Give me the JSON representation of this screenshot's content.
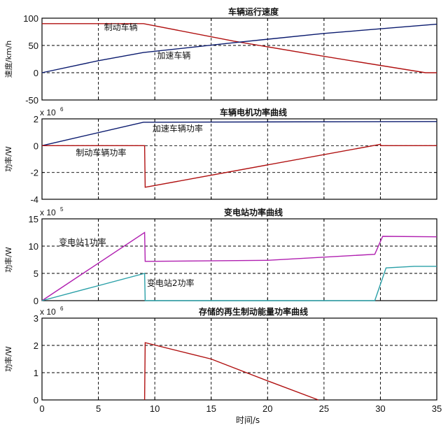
{
  "chart_data": [
    {
      "type": "line",
      "title": "车辆运行速度",
      "ylabel": "速度/km/h",
      "xlim": [
        0,
        35
      ],
      "ylim": [
        -50,
        100
      ],
      "yticks": [
        -50,
        0,
        50,
        100
      ],
      "ytick_labels": [
        "-50",
        "0",
        "50",
        "100"
      ],
      "grid": true,
      "series": [
        {
          "name": "制动车辆",
          "color": "#b01010",
          "x": [
            0,
            9,
            17,
            25,
            34,
            35
          ],
          "y": [
            90,
            90,
            58,
            30,
            0,
            0
          ]
        },
        {
          "name": "加速车辆",
          "color": "#0a1a6e",
          "x": [
            0,
            5,
            9,
            17,
            25,
            35
          ],
          "y": [
            0,
            22,
            37,
            55,
            72,
            89
          ]
        }
      ],
      "annotations": [
        {
          "text": "制动车辆",
          "x": 5.5,
          "y": 78
        },
        {
          "text": "加速车辆",
          "x": 10.2,
          "y": 26
        }
      ]
    },
    {
      "type": "line",
      "title": "车辆电机功率曲线",
      "ylabel": "功率/W",
      "exponent_base": "x 10",
      "exponent_power": "6",
      "xlim": [
        0,
        35
      ],
      "ylim": [
        -4,
        2
      ],
      "yticks": [
        -4,
        -2,
        0,
        2
      ],
      "ytick_labels": [
        "-4",
        "-2",
        "0",
        "2"
      ],
      "grid": true,
      "series": [
        {
          "name": "加速车辆功率",
          "color": "#0a1a6e",
          "x": [
            0,
            9,
            35
          ],
          "y": [
            0,
            1.75,
            1.8
          ]
        },
        {
          "name": "制动车辆功率",
          "color": "#b01010",
          "x": [
            0,
            9.1,
            9.15,
            30,
            30.05,
            35
          ],
          "y": [
            0,
            0,
            -3.1,
            0.1,
            0,
            0
          ]
        }
      ],
      "annotations": [
        {
          "text": "加速车辆功率",
          "x": 9.8,
          "y": 1.05
        },
        {
          "text": "制动车辆功率",
          "x": 3,
          "y": -0.75
        }
      ]
    },
    {
      "type": "line",
      "title": "变电站功率曲线",
      "ylabel": "功率/W",
      "exponent_base": "x 10",
      "exponent_power": "5",
      "xlim": [
        0,
        35
      ],
      "ylim": [
        0,
        15
      ],
      "yticks": [
        0,
        5,
        10,
        15
      ],
      "ytick_labels": [
        "0",
        "5",
        "10",
        "15"
      ],
      "grid": true,
      "series": [
        {
          "name": "变电站1功率",
          "color": "#b01fb0",
          "x": [
            0,
            9.1,
            9.15,
            20,
            29.5,
            30.2,
            35
          ],
          "y": [
            0,
            12.5,
            7.2,
            7.4,
            8.5,
            11.8,
            11.7
          ]
        },
        {
          "name": "变电站2功率",
          "color": "#2aa0a8",
          "x": [
            0,
            9.1,
            9.15,
            29.5,
            30.5,
            33,
            35
          ],
          "y": [
            0,
            5,
            0,
            0,
            6,
            6.3,
            6.3
          ]
        }
      ],
      "annotations": [
        {
          "text": "变电站1功率",
          "x": 1.5,
          "y": 10.2
        },
        {
          "text": "变电站2功率",
          "x": 9.3,
          "y": 2.7
        }
      ]
    },
    {
      "type": "line",
      "title": "存储的再生制动能量功率曲线",
      "ylabel": "功率/W",
      "exponent_base": "x 10",
      "exponent_power": "6",
      "xlabel": "时间/s",
      "xlim": [
        0,
        35
      ],
      "ylim": [
        0,
        3
      ],
      "yticks": [
        0,
        1,
        2,
        3
      ],
      "ytick_labels": [
        "0",
        "1",
        "2",
        "3"
      ],
      "xticks": [
        0,
        5,
        10,
        15,
        20,
        25,
        30,
        35
      ],
      "xtick_labels": [
        "0",
        "5",
        "10",
        "15",
        "20",
        "25",
        "30",
        "35"
      ],
      "grid": true,
      "series": [
        {
          "name": "再生制动能量功率",
          "color": "#b01010",
          "x": [
            9.1,
            9.15,
            15,
            20,
            24.5
          ],
          "y": [
            0,
            2.1,
            1.5,
            0.7,
            0
          ]
        }
      ]
    }
  ]
}
